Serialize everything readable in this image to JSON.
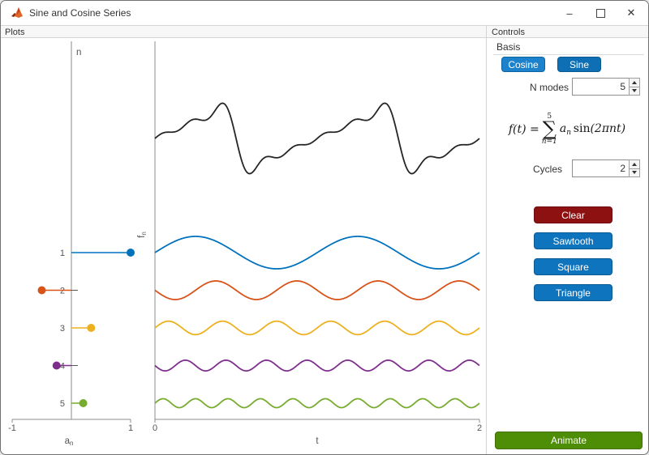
{
  "window": {
    "title": "Sine and Cosine Series",
    "minimize_glyph": "–",
    "close_glyph": "✕"
  },
  "panels": {
    "plots": "Plots",
    "controls": "Controls"
  },
  "basis": {
    "title": "Basis",
    "cosine": "Cosine",
    "sine": "Sine"
  },
  "n_modes": {
    "label": "N modes",
    "value": "5"
  },
  "formula": {
    "lhs": "f(t) =",
    "sum_upper": "5",
    "sigma": "∑",
    "sum_lower": "n=1",
    "coef": "a",
    "coef_sub": "n",
    "func_name": "sin",
    "func_args": "(2πnt)"
  },
  "cycles": {
    "label": "Cycles",
    "value": "2"
  },
  "buttons": {
    "clear": "Clear",
    "sawtooth": "Sawtooth",
    "square": "Square",
    "triangle": "Triangle",
    "animate": "Animate"
  },
  "colors": {
    "accent_blue": "#0072BD",
    "clear_red": "#8E1111",
    "animate_green": "#4E8D06",
    "axis_gray": "#8c8c8c",
    "tick_text": "#555555",
    "sum_line": "#262626"
  },
  "chart_data": [
    {
      "type": "stem",
      "orientation": "horizontal",
      "title": "",
      "ylabel": "n",
      "xlabel": "a",
      "xlabel_sub": "n",
      "xlim": [
        -1,
        1
      ],
      "xtick_labels": [
        "-1",
        "1"
      ],
      "categories": [
        1,
        2,
        3,
        4,
        5
      ],
      "values": [
        1,
        -0.5,
        0.333,
        -0.25,
        0.2
      ],
      "colors": [
        "#0072BD",
        "#D95319",
        "#EDB120",
        "#7E2F8E",
        "#77AC30"
      ]
    },
    {
      "type": "line",
      "title": "",
      "xlabel": "t",
      "ylabel": "f",
      "ylabel_sub": "n",
      "xlim": [
        0,
        2
      ],
      "xtick_labels": [
        "0",
        "2"
      ],
      "cycles_shown": 2,
      "sum_series": {
        "name": "partial sum f(t)",
        "description": "f(t) = sum over n=1..5 of a_n sin(2*pi*n*t), a_n = [1, -0.5, 0.333, -0.25, 0.2]",
        "color": "#262626"
      },
      "component_series": [
        {
          "name": "n=1",
          "n": 1,
          "amplitude": 1,
          "color": "#0072BD"
        },
        {
          "name": "n=2",
          "n": 2,
          "amplitude": -0.5,
          "color": "#D95319"
        },
        {
          "name": "n=3",
          "n": 3,
          "amplitude": 0.333,
          "color": "#EDB120"
        },
        {
          "name": "n=4",
          "n": 4,
          "amplitude": -0.25,
          "color": "#7E2F8E"
        },
        {
          "name": "n=5",
          "n": 5,
          "amplitude": 0.2,
          "color": "#77AC30"
        }
      ]
    }
  ]
}
